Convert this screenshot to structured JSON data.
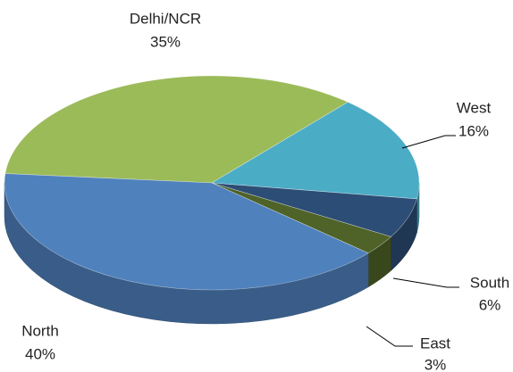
{
  "chart_data": {
    "type": "pie",
    "categories": [
      "Delhi/NCR",
      "West",
      "South",
      "East",
      "North"
    ],
    "values": [
      35,
      16,
      6,
      3,
      40
    ],
    "value_labels": [
      "35%",
      "16%",
      "6%",
      "3%",
      "40%"
    ],
    "colors": [
      "#9bbb59",
      "#4bacc6",
      "#2c4d75",
      "#4f6228",
      "#4f81bd"
    ]
  }
}
